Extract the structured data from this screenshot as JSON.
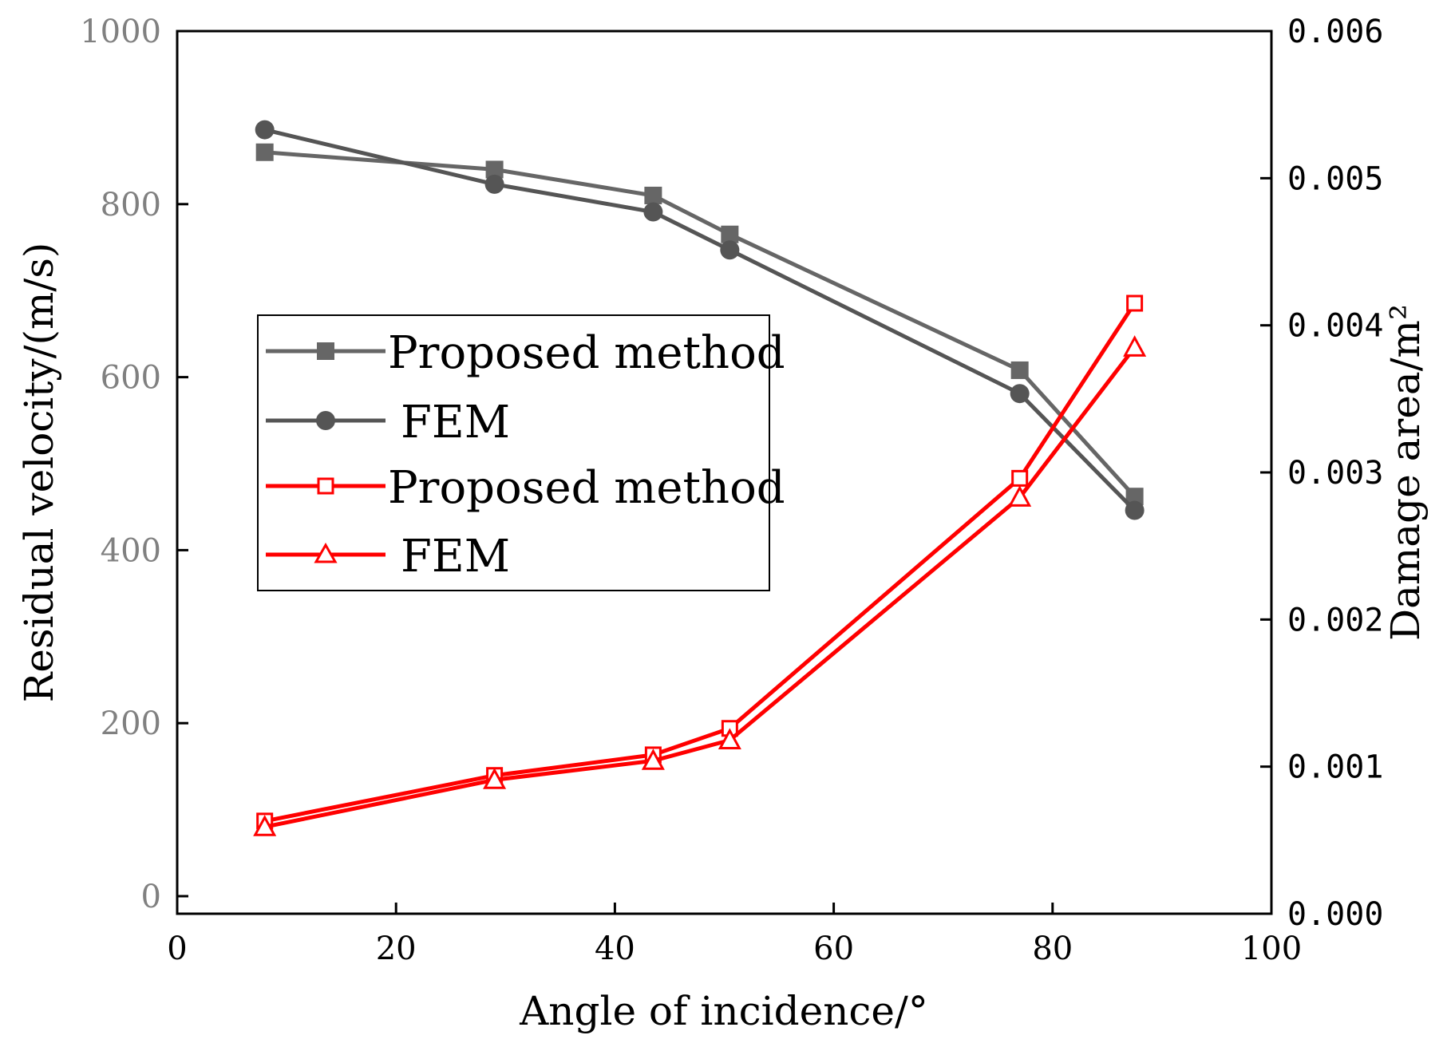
{
  "chart_data": {
    "type": "line",
    "title": "",
    "xlabel": "Angle of incidence/°",
    "ylabel_left": "Residual velocity/(m/s)",
    "ylabel_right": "Damage area/m²",
    "xlim": [
      0,
      100
    ],
    "ylim_left": [
      0,
      1000
    ],
    "ylim_right": [
      0.0,
      0.006
    ],
    "x_ticks": [
      "0",
      "20",
      "40",
      "60",
      "80",
      "100"
    ],
    "y_left_ticks": [
      "0",
      "200",
      "400",
      "600",
      "800",
      "1000"
    ],
    "y_right_ticks": [
      "0.000",
      "0.001",
      "0.002",
      "0.003",
      "0.004",
      "0.005",
      "0.006"
    ],
    "grid": false,
    "legend_position": "center-left",
    "series": [
      {
        "name": "Proposed method",
        "axis": "left",
        "color": "#666666",
        "marker": "filled-square",
        "x": [
          8,
          29,
          43.5,
          50.5,
          77,
          87.5
        ],
        "values": [
          860,
          840,
          810,
          765,
          608,
          462
        ]
      },
      {
        "name": "FEM",
        "axis": "left",
        "color": "#555555",
        "marker": "filled-circle",
        "x": [
          8,
          29,
          43.5,
          50.5,
          77,
          87.5
        ],
        "values": [
          886,
          823,
          791,
          747,
          581,
          446
        ]
      },
      {
        "name": "Proposed method",
        "axis": "right",
        "color": "#ff0000",
        "marker": "open-square",
        "x": [
          8,
          29,
          43.5,
          50.5,
          77,
          87.5
        ],
        "values": [
          0.00063,
          0.00094,
          0.00108,
          0.00126,
          0.00296,
          0.00415
        ]
      },
      {
        "name": "FEM",
        "axis": "right",
        "color": "#ff0000",
        "marker": "open-triangle",
        "x": [
          8,
          29,
          43.5,
          50.5,
          77,
          87.5
        ],
        "values": [
          0.00059,
          0.00091,
          0.00104,
          0.00118,
          0.00283,
          0.00385
        ]
      }
    ]
  }
}
